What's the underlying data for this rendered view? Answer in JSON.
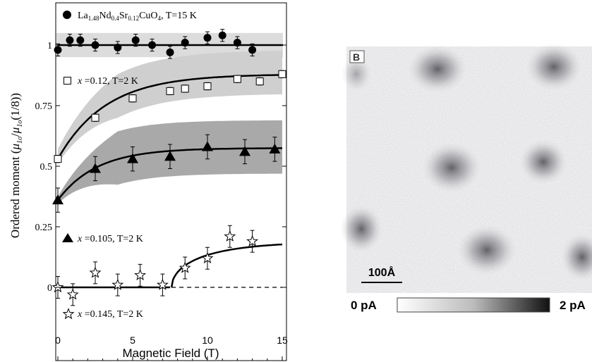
{
  "chart_data": {
    "type": "scatter",
    "xlabel": "Magnetic Field (T)",
    "ylabel": "Ordered moment (μ₁ₒ/μ₁ₒ(1/8))",
    "xlim": [
      0,
      15
    ],
    "ylim": [
      -0.08,
      1.2
    ],
    "xticks": [
      "0",
      "5",
      "10",
      "15"
    ],
    "yticks": [
      "0",
      "0.25",
      "0.5",
      "0.75",
      "1"
    ],
    "series": [
      {
        "name": "La1.48Nd0.4Sr0.12CuO4, T=15 K",
        "marker": "filled-circle",
        "x": [
          0,
          0.8,
          1.5,
          2.5,
          4,
          5.2,
          6.3,
          7.5,
          8.5,
          10,
          11,
          12,
          13
        ],
        "y": [
          0.98,
          1.02,
          1.02,
          1.0,
          0.99,
          1.02,
          1.0,
          0.97,
          1.01,
          1.03,
          1.04,
          1.01,
          0.98
        ]
      },
      {
        "name": "x =0.12, T=2 K",
        "marker": "open-square",
        "x": [
          0,
          2.5,
          5,
          7.5,
          8.5,
          10,
          12,
          13.5,
          15
        ],
        "y": [
          0.53,
          0.7,
          0.78,
          0.81,
          0.82,
          0.83,
          0.86,
          0.85,
          0.88
        ]
      },
      {
        "name": "x =0.105, T=2 K",
        "marker": "filled-triangle",
        "x": [
          0,
          2.5,
          5,
          7.5,
          10,
          12.5,
          14.5
        ],
        "y": [
          0.36,
          0.49,
          0.53,
          0.54,
          0.58,
          0.56,
          0.57
        ]
      },
      {
        "name": "x =0.145, T=2 K",
        "marker": "open-star",
        "x": [
          0,
          1,
          2.5,
          4,
          5.5,
          7,
          8.5,
          10,
          11.5,
          13
        ],
        "y": [
          0,
          -0.03,
          0.06,
          0.01,
          0.05,
          0.01,
          0.08,
          0.12,
          0.21,
          0.19
        ]
      }
    ],
    "annotations": {
      "l1_base": "La",
      "l1_s1": "1.48",
      "l1_nd": "Nd",
      "l1_s2": "0.4",
      "l1_sr": "Sr",
      "l1_s3": "0.12",
      "l1_cu": "CuO",
      "l1_s4": "4",
      "l1_t": ", T=15 K",
      "l2_x": "x",
      "l2_rest": " =0.12, T=2 K",
      "l3_x": "x",
      "l3_rest": " =0.105, T=2 K",
      "l4_x": "x",
      "l4_rest": " =0.145, T=2 K",
      "ylabel_main": "Ordered moment (",
      "ylabel_mu": "μ",
      "ylabel_sub": "1o",
      "ylabel_slash": "/",
      "ylabel_mu2": "μ",
      "ylabel_sub2": "1o",
      "ylabel_end": "(1/8))"
    }
  },
  "panel_b": {
    "label": "B",
    "scale_text": "100Å",
    "colorbar_min": "0 pA",
    "colorbar_max": "2 pA"
  }
}
